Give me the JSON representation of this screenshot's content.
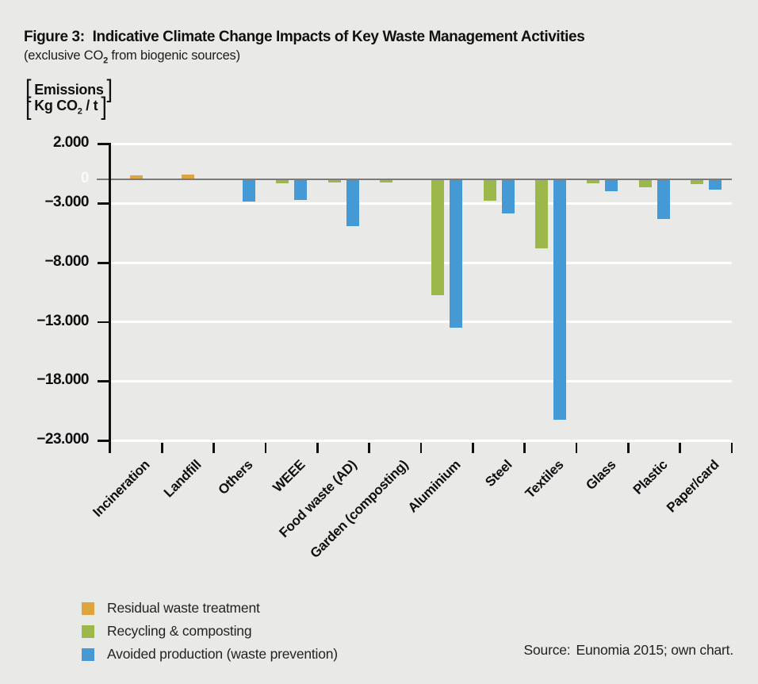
{
  "figure": {
    "label": "Figure 3:",
    "title": "Indicative Climate Change Impacts of Key Waste Management Activities",
    "subtitle_pre": "(exclusive CO",
    "subtitle_sub": "2",
    "subtitle_post": " from biogenic sources)"
  },
  "y_axis": {
    "unit_line1": "Emissions",
    "unit_line2_pre": "Kg CO",
    "unit_line2_sub": "2",
    "unit_line2_post": " / t",
    "ticks": [
      {
        "label": "2.000",
        "value": 2000
      },
      {
        "label": "0",
        "value": 0
      },
      {
        "label": "−3.000",
        "value": -3000
      },
      {
        "label": "−8.000",
        "value": -8000
      },
      {
        "label": "−13.000",
        "value": -13000
      },
      {
        "label": "−18.000",
        "value": -18000
      },
      {
        "label": "−23.000",
        "value": -23000
      }
    ]
  },
  "chart_data": {
    "type": "bar",
    "title": "Indicative Climate Change Impacts of Key Waste Management Activities (exclusive CO2 from biogenic sources)",
    "ylabel": "Emissions Kg CO2/t",
    "ylim": [
      -23000,
      2000
    ],
    "grid": true,
    "legend_position": "bottom-left",
    "categories": [
      "Incineration",
      "Landfill",
      "Others",
      "WEEE",
      "Food waste (AD)",
      "Garden (composting)",
      "Aluminium",
      "Steel",
      "Textiles",
      "Glass",
      "Plastic",
      "Paper/card"
    ],
    "series": [
      {
        "name": "Residual waste treatment",
        "color": "#dda440",
        "values": [
          250,
          350,
          null,
          null,
          null,
          null,
          null,
          null,
          null,
          null,
          null,
          null
        ]
      },
      {
        "name": "Recycling & composting",
        "color": "#9cb84b",
        "values": [
          null,
          null,
          null,
          -350,
          -200,
          -200,
          -9800,
          -1800,
          -5800,
          -350,
          -650,
          -400
        ]
      },
      {
        "name": "Avoided production (waste prevention)",
        "color": "#4599d5",
        "values": [
          null,
          null,
          -1900,
          -1750,
          -3950,
          null,
          -12500,
          -2900,
          -20300,
          -1000,
          -3350,
          -900
        ]
      }
    ]
  },
  "source": {
    "label": "Source:",
    "text": "Eunomia 2015; own chart."
  }
}
